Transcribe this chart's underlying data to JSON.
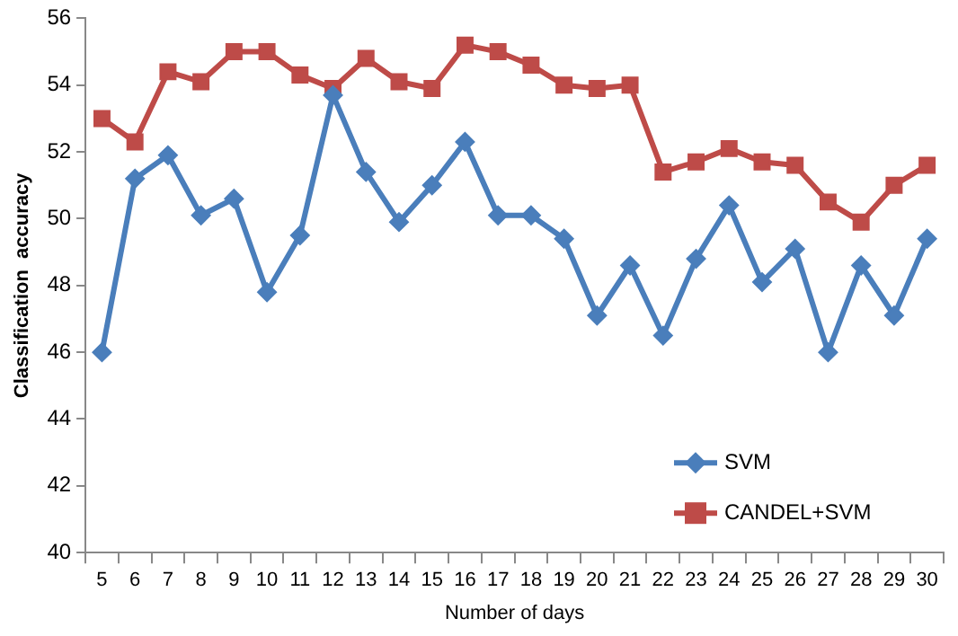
{
  "chart_data": {
    "type": "line",
    "xlabel": "Number of days",
    "ylabel": "Classification  accuracy",
    "categories": [
      "5",
      "6",
      "7",
      "8",
      "9",
      "10",
      "11",
      "12",
      "13",
      "14",
      "15",
      "16",
      "17",
      "18",
      "19",
      "20",
      "21",
      "22",
      "23",
      "24",
      "25",
      "26",
      "27",
      "28",
      "29",
      "30"
    ],
    "ylim": [
      40,
      56
    ],
    "yticks": [
      40,
      42,
      44,
      46,
      48,
      50,
      52,
      54,
      56
    ],
    "grid": false,
    "legend": "bottom right",
    "series": [
      {
        "name": "SVM",
        "color": "#4a7ebb",
        "marker": "diamond",
        "values": [
          46.0,
          51.2,
          51.9,
          50.1,
          50.6,
          47.8,
          49.5,
          53.7,
          51.4,
          49.9,
          51.0,
          52.3,
          50.1,
          50.1,
          49.4,
          47.1,
          48.6,
          46.5,
          48.8,
          50.4,
          48.1,
          49.1,
          46.0,
          48.6,
          47.1,
          49.4
        ]
      },
      {
        "name": "CANDEL+SVM",
        "color": "#be4b48",
        "marker": "square",
        "values": [
          53.0,
          52.3,
          54.4,
          54.1,
          55.0,
          55.0,
          54.3,
          53.9,
          54.8,
          54.1,
          53.9,
          55.2,
          55.0,
          54.6,
          54.0,
          53.9,
          54.0,
          51.4,
          51.7,
          52.1,
          51.7,
          51.6,
          50.5,
          49.9,
          51.0,
          51.6
        ]
      }
    ]
  }
}
